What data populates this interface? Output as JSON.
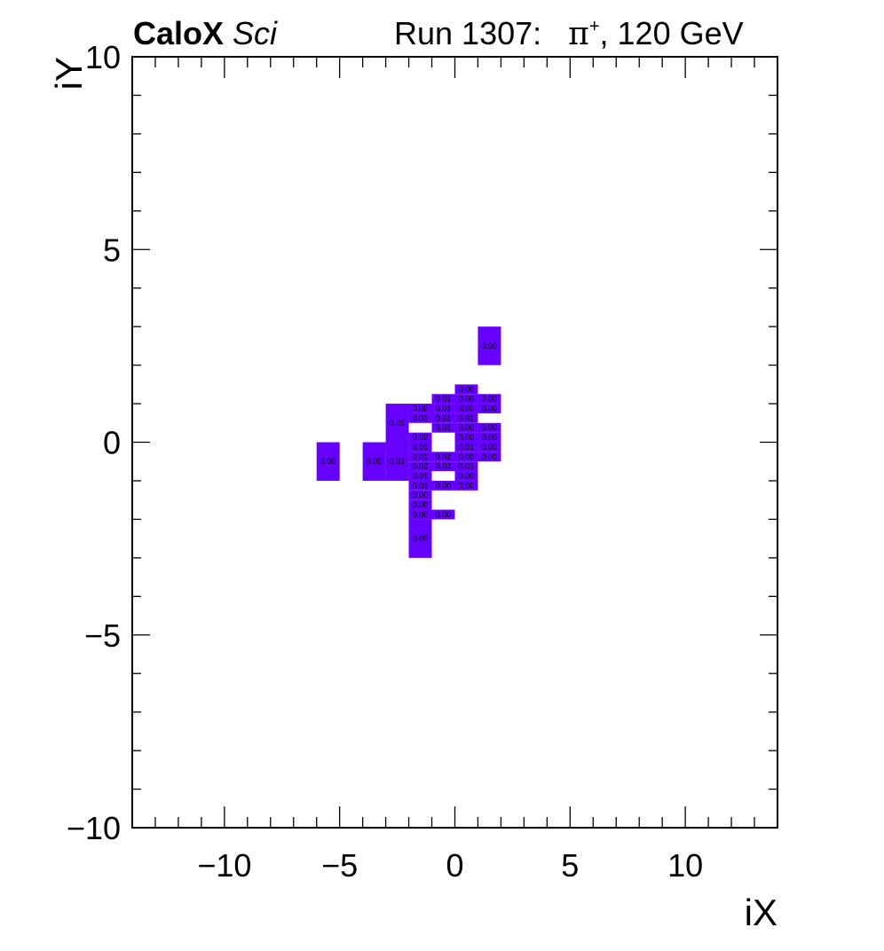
{
  "header": {
    "brand": "CaloX",
    "brand_sub": "Sci",
    "run": "Run 1307:",
    "particle": "π",
    "charge": "+",
    "energy": ", 120 GeV"
  },
  "chart_data": {
    "type": "heatmap",
    "xlabel": "iX",
    "ylabel": "iY",
    "xlim": [
      -14,
      14
    ],
    "ylim": [
      -10,
      10
    ],
    "xticks": [
      -10,
      -5,
      0,
      5,
      10
    ],
    "xtick_labels": [
      "−10",
      "−5",
      "0",
      "5",
      "10"
    ],
    "yticks": [
      -10,
      -5,
      0,
      5,
      10
    ],
    "ytick_labels": [
      "−10",
      "−5",
      "0",
      "5",
      "10"
    ],
    "cell_color": "#6600ff",
    "large_cells": [
      {
        "x": [
          -6,
          -5
        ],
        "y": [
          -1,
          0
        ],
        "label": "0.00"
      },
      {
        "x": [
          -4,
          -3
        ],
        "y": [
          -1,
          0
        ],
        "label": "0.00"
      },
      {
        "x": [
          -3,
          -2
        ],
        "y": [
          -1,
          0
        ],
        "label": "0.01"
      },
      {
        "x": [
          -3,
          -2
        ],
        "y": [
          0,
          1
        ],
        "label": "0.01"
      },
      {
        "x": [
          1,
          2
        ],
        "y": [
          2,
          3
        ],
        "label": "0.00"
      },
      {
        "x": [
          -2,
          -1
        ],
        "y": [
          -3,
          -2
        ],
        "label": "0.00"
      }
    ],
    "columns": [
      {
        "x": [
          -2,
          -1
        ],
        "cells": [
          {
            "y": 1.0,
            "label": "0.00"
          },
          {
            "y": 0.75,
            "label": "0.01"
          },
          {
            "y": 0.25,
            "label": "0.02"
          },
          {
            "y": 0.0,
            "label": "0.01"
          },
          {
            "y": -0.25,
            "label": "0.01"
          },
          {
            "y": -0.5,
            "label": "0.02"
          },
          {
            "y": -0.75,
            "label": "0.01"
          },
          {
            "y": -1.0,
            "label": "0.01"
          },
          {
            "y": -1.25,
            "label": "0.00"
          },
          {
            "y": -1.5,
            "label": "0.00"
          },
          {
            "y": -1.75,
            "label": "0.00"
          }
        ]
      },
      {
        "x": [
          -1,
          0
        ],
        "cells": [
          {
            "y": 1.25,
            "label": "0.01"
          },
          {
            "y": 1.0,
            "label": "0.01"
          },
          {
            "y": 0.75,
            "label": "0.01"
          },
          {
            "y": 0.5,
            "label": "0.01"
          },
          {
            "y": -0.25,
            "label": "0.02"
          },
          {
            "y": -0.5,
            "label": "0.02"
          },
          {
            "y": -1.0,
            "label": "0.00"
          },
          {
            "y": -1.75,
            "label": "0.00"
          }
        ]
      },
      {
        "x": [
          0,
          1
        ],
        "cells": [
          {
            "y": 1.5,
            "label": "0.00"
          },
          {
            "y": 1.25,
            "label": "0.00"
          },
          {
            "y": 1.0,
            "label": "0.00"
          },
          {
            "y": 0.75,
            "label": "0.01"
          },
          {
            "y": 0.5,
            "label": "0.00"
          },
          {
            "y": 0.25,
            "label": "0.00"
          },
          {
            "y": 0.0,
            "label": "0.01"
          },
          {
            "y": -0.25,
            "label": "0.00"
          },
          {
            "y": -0.5,
            "label": "0.01"
          },
          {
            "y": -0.75,
            "label": "0.00"
          },
          {
            "y": -1.0,
            "label": "0.00"
          }
        ]
      },
      {
        "x": [
          1,
          2
        ],
        "cells": [
          {
            "y": 1.25,
            "label": "0.00"
          },
          {
            "y": 1.0,
            "label": "0.00"
          },
          {
            "y": 0.5,
            "label": "0.00"
          },
          {
            "y": 0.25,
            "label": "0.00"
          },
          {
            "y": 0.0,
            "label": "0.00"
          },
          {
            "y": -0.25,
            "label": "0.00"
          }
        ]
      }
    ]
  }
}
